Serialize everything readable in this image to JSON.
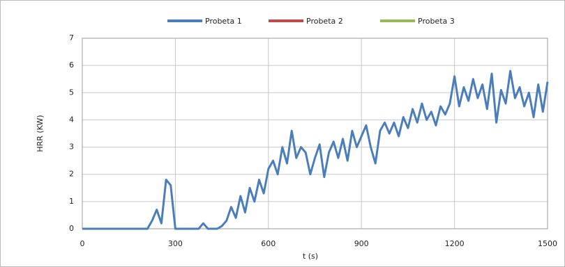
{
  "chart_data": {
    "type": "line",
    "x_label": "t (s)",
    "y_label": "HRR  (KW)",
    "x": [
      0,
      15,
      30,
      45,
      60,
      75,
      90,
      105,
      120,
      135,
      150,
      165,
      180,
      195,
      210,
      225,
      240,
      255,
      270,
      285,
      300,
      315,
      330,
      345,
      360,
      375,
      390,
      405,
      420,
      435,
      450,
      465,
      480,
      495,
      510,
      525,
      540,
      555,
      570,
      585,
      600,
      615,
      630,
      645,
      660,
      675,
      690,
      705,
      720,
      735,
      750,
      765,
      780,
      795,
      810,
      825,
      840,
      855,
      870,
      885,
      900,
      915,
      930,
      945,
      960,
      975,
      990,
      1005,
      1020,
      1035,
      1050,
      1065,
      1080,
      1095,
      1110,
      1125,
      1140,
      1155,
      1170,
      1185,
      1200,
      1215,
      1230,
      1245,
      1260,
      1275,
      1290,
      1305,
      1320,
      1335,
      1350,
      1365,
      1380,
      1395,
      1410,
      1425,
      1440,
      1455,
      1470,
      1485,
      1500
    ],
    "series": [
      {
        "name": "Probeta 1",
        "color": "#4a7ebb",
        "values": [
          0,
          0,
          0,
          0,
          0,
          0,
          0,
          0,
          0,
          0,
          0,
          0,
          0,
          0,
          0,
          0.3,
          0.7,
          0.2,
          1.8,
          1.6,
          0,
          0,
          0,
          0,
          0,
          0,
          0.2,
          0,
          0,
          0,
          0.1,
          0.3,
          0.8,
          0.4,
          1.2,
          0.6,
          1.5,
          1.0,
          1.8,
          1.3,
          2.2,
          2.5,
          2.0,
          3.0,
          2.4,
          3.6,
          2.6,
          3.0,
          2.8,
          2.0,
          2.6,
          3.1,
          1.9,
          2.8,
          3.2,
          2.6,
          3.3,
          2.5,
          3.6,
          3.0,
          3.4,
          3.8,
          3.0,
          2.4,
          3.6,
          3.9,
          3.5,
          3.9,
          3.4,
          4.1,
          3.7,
          4.4,
          3.9,
          4.6,
          4.0,
          4.3,
          3.8,
          4.5,
          4.2,
          4.6,
          5.6,
          4.5,
          5.2,
          4.7,
          5.5,
          4.8,
          5.3,
          4.4,
          5.7,
          3.9,
          5.1,
          4.6,
          5.8,
          4.8,
          5.2,
          4.5,
          5.0,
          4.1,
          5.3,
          4.3,
          5.4
        ]
      },
      {
        "name": "Probeta 2",
        "color": "#be4b48",
        "values": [
          null,
          null,
          null,
          null,
          null,
          null,
          null,
          null,
          null,
          null,
          null,
          null,
          null,
          null,
          null,
          null,
          null,
          null,
          null,
          null,
          null,
          null,
          null,
          null,
          null,
          null,
          null,
          null,
          null,
          null,
          null,
          null,
          null,
          null,
          null,
          null,
          null,
          null,
          null,
          null,
          null,
          null,
          null,
          null,
          null,
          null,
          null,
          null,
          null,
          null,
          null,
          null,
          null,
          null,
          null,
          null,
          null,
          null,
          null,
          null,
          null,
          null,
          null,
          null,
          null,
          null,
          null,
          null,
          null,
          null,
          null,
          null,
          null,
          null,
          null,
          null,
          null,
          null,
          null,
          null,
          null,
          null,
          null,
          null,
          null,
          null,
          null,
          null,
          null,
          null,
          null,
          null,
          null,
          null,
          null,
          null,
          null,
          null,
          null,
          null,
          null
        ]
      },
      {
        "name": "Probeta 3",
        "color": "#98b954",
        "values": [
          null,
          null,
          null,
          null,
          null,
          null,
          null,
          null,
          null,
          null,
          null,
          null,
          null,
          null,
          null,
          null,
          null,
          null,
          null,
          null,
          null,
          null,
          null,
          null,
          null,
          null,
          null,
          null,
          null,
          null,
          null,
          null,
          null,
          null,
          null,
          null,
          null,
          null,
          null,
          null,
          null,
          null,
          null,
          null,
          null,
          null,
          null,
          null,
          null,
          null,
          null,
          null,
          null,
          null,
          null,
          null,
          null,
          null,
          null,
          null,
          null,
          null,
          null,
          null,
          null,
          null,
          null,
          null,
          null,
          null,
          null,
          null,
          null,
          null,
          null,
          null,
          null,
          null,
          null,
          null,
          null,
          null,
          null,
          null,
          null,
          null,
          null,
          null,
          null,
          null,
          null,
          null,
          null,
          null,
          null,
          null,
          null,
          null,
          null,
          null,
          null
        ]
      }
    ],
    "xlim": [
      0,
      1500
    ],
    "xticks": [
      0,
      300,
      600,
      900,
      1200,
      1500
    ],
    "ylim": [
      0,
      7
    ],
    "yticks": [
      0,
      1,
      2,
      3,
      4,
      5,
      6,
      7
    ],
    "grid": true,
    "legend": "top"
  }
}
